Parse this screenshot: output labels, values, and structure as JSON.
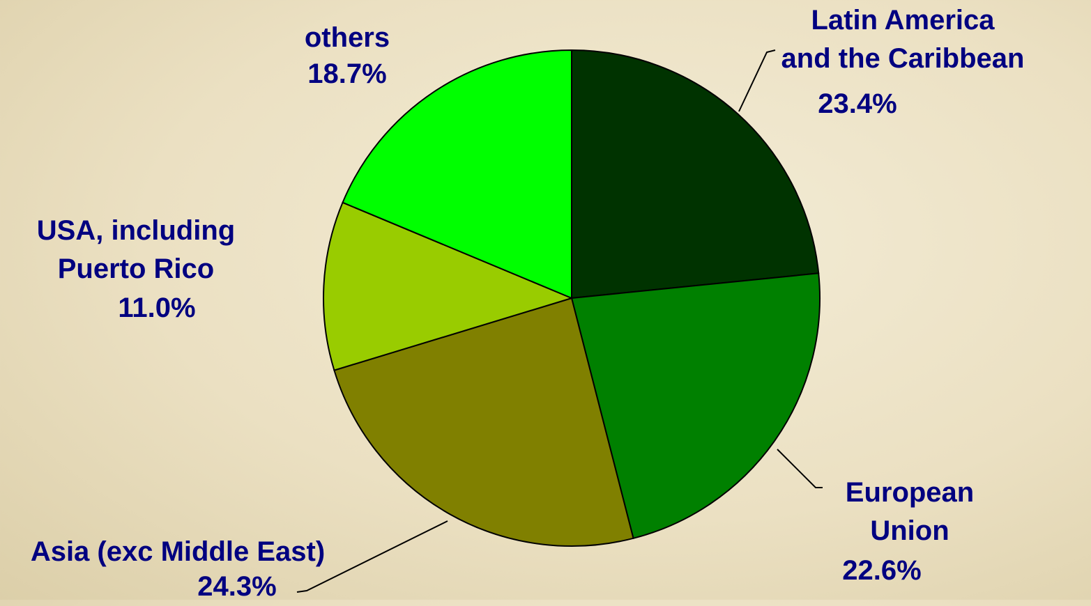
{
  "chart_data": {
    "type": "pie",
    "categories": [
      "Latin America\nand the Caribbean",
      "European\nUnion",
      "Asia (exc Middle East)",
      "USA, including\nPuerto Rico",
      "others"
    ],
    "values": [
      23.4,
      22.6,
      24.3,
      11.0,
      18.7
    ],
    "value_labels": [
      "23.4%",
      "22.6%",
      "24.3%",
      "11.0%",
      "18.7%"
    ],
    "colors": [
      "#003300",
      "#008000",
      "#808000",
      "#99cc00",
      "#00ff00"
    ]
  }
}
